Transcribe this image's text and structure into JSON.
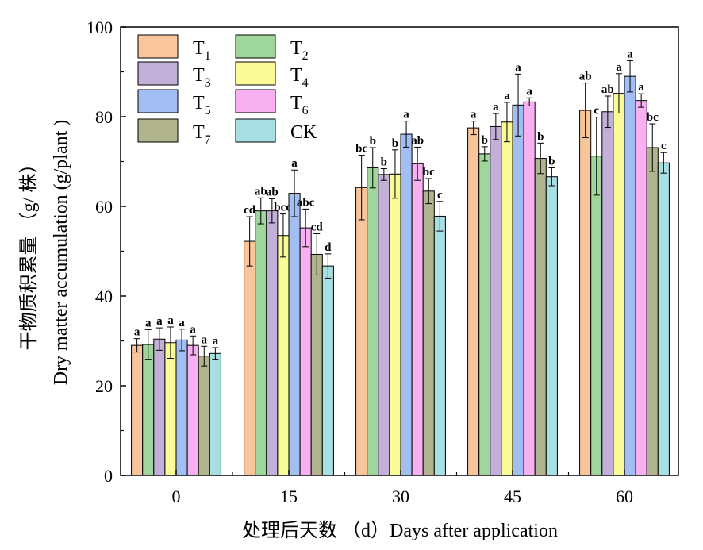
{
  "chart_data": {
    "type": "bar",
    "ylabel_cn": "干物质积累量 （g/ 株）",
    "ylabel_en": "Dry matter accumulation (g/plant )",
    "xlabel": "处理后天数 （d）Days after application",
    "ylim": [
      0,
      100
    ],
    "yticks": [
      "0",
      "20",
      "40",
      "60",
      "80",
      "100"
    ],
    "categories": [
      "0",
      "15",
      "30",
      "45",
      "60"
    ],
    "legend_position": "top-left",
    "series": [
      {
        "name": "T",
        "sub": "1",
        "color": "#f9c59b",
        "values": [
          29,
          52.2,
          64.2,
          77.5,
          81.4
        ],
        "errors": [
          1.5,
          5.5,
          7.2,
          1.5,
          6.1
        ],
        "sig": [
          "a",
          "cd",
          "bc",
          "a",
          "ab"
        ]
      },
      {
        "name": "T",
        "sub": "2",
        "color": "#9fd69b",
        "values": [
          29.2,
          59,
          68.6,
          71.7,
          71.2
        ],
        "errors": [
          3.3,
          2.9,
          4.5,
          1.6,
          8.7
        ],
        "sig": [
          "a",
          "ab",
          "b",
          "b",
          "c"
        ]
      },
      {
        "name": "T",
        "sub": "3",
        "color": "#c3b0d8",
        "values": [
          30.4,
          59,
          67.1,
          77.8,
          81.1
        ],
        "errors": [
          2.5,
          2.7,
          1.3,
          2.9,
          3.5
        ],
        "sig": [
          "a",
          "ab",
          "b",
          "a",
          "ab"
        ]
      },
      {
        "name": "T",
        "sub": "4",
        "color": "#fafa96",
        "values": [
          29.6,
          53.5,
          67.2,
          78.8,
          85.2
        ],
        "errors": [
          3.5,
          4.8,
          5.4,
          4.4,
          4.4
        ],
        "sig": [
          "a",
          "bcd",
          "b",
          "a",
          "a"
        ]
      },
      {
        "name": "T",
        "sub": "5",
        "color": "#a3bef3",
        "values": [
          30.2,
          62.9,
          76.1,
          82.6,
          89
        ],
        "errors": [
          2.4,
          5.2,
          2.9,
          6.9,
          3.5
        ],
        "sig": [
          "a",
          "a",
          "a",
          "a",
          "a"
        ]
      },
      {
        "name": "T",
        "sub": "6",
        "color": "#f7b1f0",
        "values": [
          29,
          55.2,
          69.5,
          83.3,
          83.6
        ],
        "errors": [
          2.1,
          4.2,
          3.7,
          0.9,
          1.5
        ],
        "sig": [
          "a",
          "abc",
          "ab",
          "a",
          "a"
        ]
      },
      {
        "name": "T",
        "sub": "7",
        "color": "#b1b58e",
        "values": [
          26.6,
          49.3,
          63.4,
          70.7,
          73.1
        ],
        "errors": [
          2.2,
          4.6,
          2.8,
          3.4,
          5.3
        ],
        "sig": [
          "a",
          "cd",
          "bc",
          "b",
          "bc"
        ]
      },
      {
        "name": "CK",
        "sub": "",
        "color": "#a8dfe2",
        "values": [
          27.2,
          46.7,
          57.8,
          66.6,
          69.7
        ],
        "errors": [
          1.3,
          2.7,
          3.3,
          2,
          2.3
        ],
        "sig": [
          "a",
          "d",
          "c",
          "b",
          "c"
        ]
      }
    ]
  }
}
